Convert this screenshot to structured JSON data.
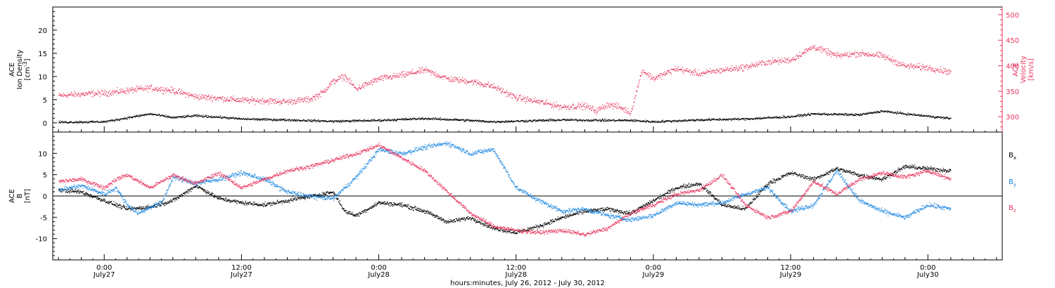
{
  "chart_data": [
    {
      "type": "scatter",
      "panel": "top",
      "ylabel_lines": [
        "ACE",
        "Ion Density",
        "[cm^-3]"
      ],
      "y2label_lines": [
        "ACE",
        "Velocity",
        "[km/s]"
      ],
      "ylim": [
        -2,
        25
      ],
      "y_ticks": [
        0,
        5,
        10,
        15,
        20
      ],
      "y2lim": [
        270,
        515
      ],
      "y2_ticks": [
        300,
        350,
        400,
        450,
        500
      ],
      "colors": {
        "density": "#000000",
        "velocity": "#e8365f"
      },
      "series": [
        {
          "name": "Ion Density",
          "axis": "left",
          "color": "#000000",
          "hours": [
            -4,
            0,
            4,
            6,
            8,
            10,
            12,
            16,
            20,
            24,
            28,
            31,
            34,
            40,
            44,
            46,
            48,
            52,
            56,
            60,
            62,
            66,
            68,
            70,
            72,
            74
          ],
          "values": [
            0.2,
            0.3,
            2.0,
            1.2,
            1.6,
            1.3,
            0.9,
            0.7,
            0.4,
            0.6,
            1.0,
            0.7,
            0.3,
            0.7,
            0.6,
            0.6,
            0.3,
            0.7,
            0.9,
            1.4,
            2.0,
            1.8,
            2.6,
            2.0,
            1.5,
            1.0
          ]
        },
        {
          "name": "Velocity",
          "axis": "right",
          "color": "#e8365f",
          "hours": [
            -4,
            -2,
            0,
            2,
            4,
            6,
            8,
            10,
            12,
            14,
            16,
            18,
            19,
            20,
            21,
            22,
            24,
            26,
            28,
            30,
            32,
            34,
            36,
            38,
            40,
            42,
            43,
            44,
            45,
            46,
            47,
            48,
            50,
            52,
            54,
            56,
            58,
            60,
            62,
            64,
            66,
            68,
            70,
            72,
            74
          ],
          "values": [
            342,
            345,
            347,
            352,
            357,
            352,
            340,
            337,
            333,
            332,
            330,
            335,
            347,
            370,
            380,
            355,
            375,
            382,
            392,
            375,
            370,
            360,
            338,
            330,
            320,
            322,
            312,
            325,
            320,
            308,
            392,
            375,
            395,
            385,
            392,
            398,
            408,
            412,
            438,
            420,
            425,
            420,
            400,
            397,
            388
          ]
        }
      ]
    },
    {
      "type": "scatter",
      "panel": "bottom",
      "ylabel_lines": [
        "ACE",
        "B",
        "[nT]"
      ],
      "ylim": [
        -15,
        15
      ],
      "y_ticks": [
        -10,
        -5,
        0,
        5,
        10
      ],
      "legend_position": "right",
      "series": [
        {
          "name": "Bx",
          "label_main": "B",
          "label_sub": "x",
          "color": "#000000",
          "hours": [
            -4,
            -2,
            0,
            2,
            4,
            6,
            8,
            10,
            12,
            14,
            16,
            18,
            20,
            21,
            22,
            24,
            26,
            28,
            30,
            32,
            34,
            36,
            38,
            40,
            42,
            44,
            46,
            48,
            50,
            52,
            54,
            56,
            58,
            60,
            62,
            64,
            66,
            68,
            70,
            72,
            74
          ],
          "values": [
            1.5,
            1.0,
            -1.0,
            -3.0,
            -2.5,
            -1.0,
            2.5,
            -0.5,
            -1.5,
            -2.0,
            -1.0,
            0.0,
            1.0,
            -3.5,
            -4.5,
            -1.5,
            -2.0,
            -3.5,
            -6.0,
            -5.0,
            -7.5,
            -8.5,
            -7.0,
            -5.0,
            -3.5,
            -3.0,
            -4.0,
            -1.0,
            2.0,
            3.0,
            -2.0,
            -3.0,
            3.0,
            5.5,
            4.0,
            6.5,
            5.0,
            4.0,
            7.0,
            6.5,
            6.0
          ]
        },
        {
          "name": "By",
          "label_main": "B",
          "label_sub": "y",
          "color": "#1a86e0",
          "hours": [
            -4,
            -2,
            0,
            1,
            2,
            3,
            4,
            5,
            6,
            8,
            10,
            12,
            14,
            16,
            18,
            20,
            21,
            22,
            24,
            26,
            28,
            30,
            32,
            34,
            36,
            38,
            40,
            42,
            44,
            46,
            48,
            50,
            52,
            54,
            56,
            58,
            60,
            62,
            64,
            66,
            68,
            70,
            72,
            74
          ],
          "values": [
            1.5,
            2.5,
            0.5,
            2.0,
            -2.0,
            -4.0,
            -2.5,
            -1.5,
            4.5,
            3.0,
            4.0,
            5.5,
            4.0,
            1.0,
            0.0,
            -0.5,
            2.0,
            4.5,
            11.0,
            10.0,
            11.5,
            12.5,
            10.0,
            11.0,
            2.0,
            -1.0,
            -3.5,
            -3.0,
            -4.5,
            -5.5,
            -4.5,
            -1.5,
            -2.0,
            -1.5,
            0.5,
            2.0,
            -3.5,
            -2.0,
            6.0,
            -1.0,
            -3.5,
            -5.0,
            -2.0,
            -3.0
          ]
        },
        {
          "name": "Bz",
          "label_main": "B",
          "label_sub": "z",
          "color": "#e8365f",
          "hours": [
            -4,
            -2,
            0,
            1,
            2,
            4,
            6,
            8,
            10,
            12,
            14,
            16,
            18,
            20,
            22,
            24,
            26,
            28,
            30,
            32,
            34,
            36,
            38,
            40,
            42,
            44,
            46,
            48,
            50,
            52,
            54,
            56,
            58,
            60,
            62,
            64,
            66,
            68,
            70,
            72,
            74
          ],
          "values": [
            3.5,
            4.0,
            2.0,
            4.0,
            5.0,
            2.0,
            5.0,
            3.0,
            5.5,
            2.0,
            4.0,
            6.0,
            7.0,
            8.5,
            10.0,
            12.0,
            9.0,
            6.0,
            1.0,
            -4.0,
            -7.0,
            -8.0,
            -8.5,
            -8.0,
            -9.0,
            -7.5,
            -4.0,
            -2.0,
            0.5,
            1.5,
            5.0,
            -2.0,
            -5.0,
            -3.5,
            3.5,
            0.5,
            4.0,
            5.5,
            4.5,
            6.0,
            4.0
          ]
        }
      ]
    }
  ],
  "x_axis": {
    "xlabel": "hours:minutes, July 26, 2012 - July 30, 2012",
    "xlim_hours": [
      -4.5,
      78.5
    ],
    "ticks": [
      {
        "hour": 0,
        "time": "0:00",
        "date": "July27"
      },
      {
        "hour": 12,
        "time": "12:00",
        "date": "July27"
      },
      {
        "hour": 24,
        "time": "0:00",
        "date": "July28"
      },
      {
        "hour": 36,
        "time": "12:00",
        "date": "July28"
      },
      {
        "hour": 48,
        "time": "0:00",
        "date": "July29"
      },
      {
        "hour": 60,
        "time": "12:00",
        "date": "July29"
      },
      {
        "hour": 72,
        "time": "0:00",
        "date": "July30"
      }
    ]
  }
}
